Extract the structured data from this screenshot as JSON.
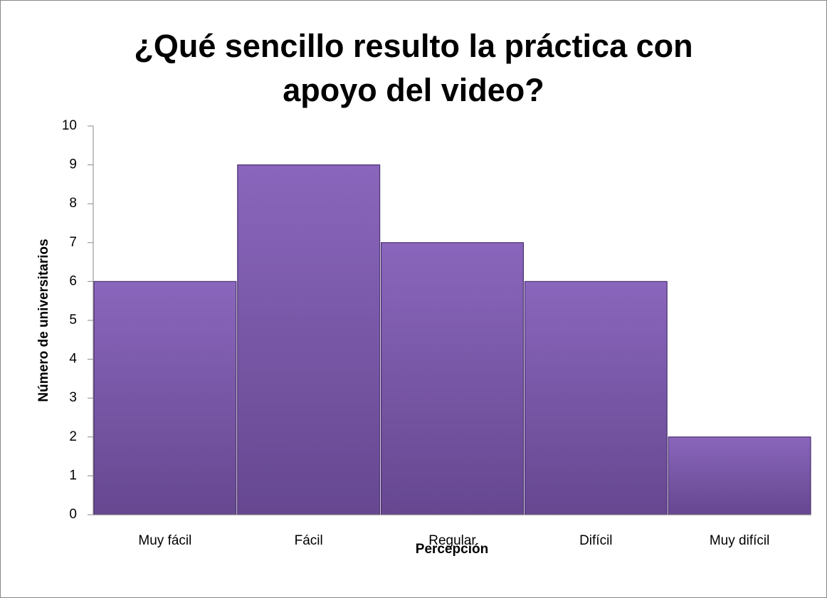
{
  "chart_data": {
    "type": "bar",
    "title": "¿Qué sencillo resulto la práctica con apoyo del video?",
    "x_label": "Percepción",
    "y_label": "Número de universitarios",
    "categories": [
      "Muy fácil",
      "Fácil",
      "Regular",
      "Difícil",
      "Muy difícil"
    ],
    "values": [
      6,
      9,
      7,
      6,
      2
    ],
    "color": "#7b58a8",
    "ylim": [
      0,
      10
    ],
    "yticks": [
      0,
      1,
      2,
      3,
      4,
      5,
      6,
      7,
      8,
      9,
      10
    ],
    "grid": false
  }
}
